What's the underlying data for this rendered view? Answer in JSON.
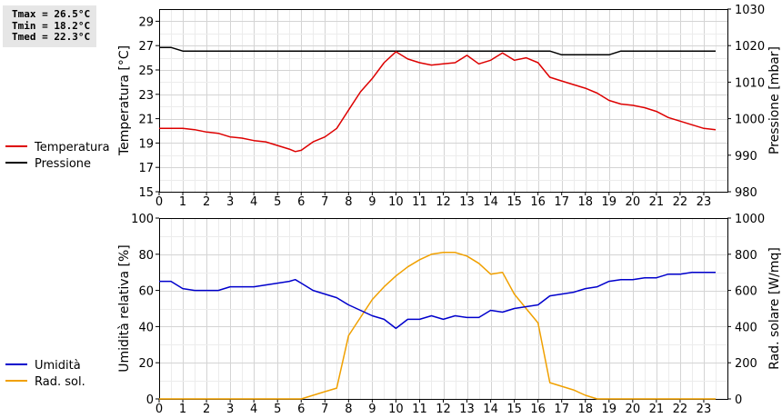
{
  "stats": [
    {
      "label": "Tmax",
      "value": "26.5°C"
    },
    {
      "label": "Tmin",
      "value": "18.2°C"
    },
    {
      "label": "Tmed",
      "value": "22.3°C"
    }
  ],
  "chart_data": [
    {
      "type": "line",
      "title": "",
      "xlabel": "",
      "ylabel": "Temperatura [°C]",
      "y2label": "Pressione [mbar]",
      "xlim": [
        0,
        24
      ],
      "ylim": [
        15,
        30
      ],
      "y2lim": [
        980,
        1030
      ],
      "x_ticks": [
        0,
        1,
        2,
        3,
        4,
        5,
        6,
        7,
        8,
        9,
        10,
        11,
        12,
        13,
        14,
        15,
        16,
        17,
        18,
        19,
        20,
        21,
        22,
        23
      ],
      "y_ticks": [
        15,
        17,
        19,
        21,
        23,
        25,
        27,
        29
      ],
      "y2_ticks": [
        980,
        990,
        1000,
        1010,
        1020,
        1030
      ],
      "grid": true,
      "legend": "left",
      "series": [
        {
          "name": "Temperatura",
          "axis": "left",
          "color": "#dd0000",
          "x": [
            0,
            0.5,
            1,
            1.5,
            2,
            2.5,
            3,
            3.5,
            4,
            4.5,
            5,
            5.5,
            5.75,
            6,
            6.5,
            7,
            7.5,
            8,
            8.5,
            9,
            9.5,
            10,
            10.5,
            11,
            11.5,
            12,
            12.5,
            13,
            13.5,
            14,
            14.5,
            15,
            15.5,
            16,
            16.5,
            17,
            17.5,
            18,
            18.5,
            19,
            19.5,
            20,
            20.5,
            21,
            21.5,
            22,
            22.5,
            23,
            23.5
          ],
          "values": [
            20.2,
            20.2,
            20.2,
            20.1,
            19.9,
            19.8,
            19.5,
            19.4,
            19.2,
            19.1,
            18.8,
            18.5,
            18.3,
            18.4,
            19.1,
            19.5,
            20.2,
            21.7,
            23.2,
            24.3,
            25.6,
            26.5,
            25.9,
            25.6,
            25.4,
            25.5,
            25.6,
            26.2,
            25.5,
            25.8,
            26.4,
            25.8,
            26.0,
            25.6,
            24.4,
            24.1,
            23.8,
            23.5,
            23.1,
            22.5,
            22.2,
            22.1,
            21.9,
            21.6,
            21.1,
            20.8,
            20.5,
            20.2,
            20.1
          ]
        },
        {
          "name": "Pressione",
          "axis": "right",
          "color": "#000000",
          "x": [
            0,
            0.5,
            1,
            1.5,
            16.5,
            17,
            17.5,
            18,
            18.5,
            19,
            19.5,
            20,
            23.5
          ],
          "values": [
            1019.5,
            1019.5,
            1018.5,
            1018.5,
            1018.5,
            1017.5,
            1017.5,
            1017.5,
            1017.5,
            1017.5,
            1018.5,
            1018.5,
            1018.5
          ]
        }
      ]
    },
    {
      "type": "line",
      "title": "",
      "xlabel": "",
      "ylabel": "Umidità relativa [%]",
      "y2label": "Rad. solare [W/mq]",
      "xlim": [
        0,
        24
      ],
      "ylim": [
        0,
        100
      ],
      "y2lim": [
        0,
        1000
      ],
      "x_ticks": [
        0,
        1,
        2,
        3,
        4,
        5,
        6,
        7,
        8,
        9,
        10,
        11,
        12,
        13,
        14,
        15,
        16,
        17,
        18,
        19,
        20,
        21,
        22,
        23
      ],
      "y_ticks": [
        0,
        20,
        40,
        60,
        80,
        100
      ],
      "y2_ticks": [
        0,
        200,
        400,
        600,
        800,
        1000
      ],
      "grid": true,
      "legend": "left",
      "series": [
        {
          "name": "Umidità",
          "axis": "left",
          "color": "#0000cc",
          "x": [
            0,
            0.5,
            1,
            1.5,
            2,
            2.5,
            3,
            3.5,
            4,
            4.5,
            5,
            5.5,
            5.75,
            6,
            6.5,
            7,
            7.5,
            8,
            8.5,
            9,
            9.5,
            10,
            10.5,
            11,
            11.5,
            12,
            12.5,
            13,
            13.5,
            14,
            14.5,
            15,
            15.5,
            16,
            16.5,
            17,
            17.5,
            18,
            18.5,
            19,
            19.5,
            20,
            20.5,
            21,
            21.5,
            22,
            22.5,
            23,
            23.5
          ],
          "values": [
            65,
            65,
            61,
            60,
            60,
            60,
            62,
            62,
            62,
            63,
            64,
            65,
            66,
            64,
            60,
            58,
            56,
            52,
            49,
            46,
            44,
            39,
            44,
            44,
            46,
            44,
            46,
            45,
            45,
            49,
            48,
            50,
            51,
            52,
            57,
            58,
            59,
            61,
            62,
            65,
            66,
            66,
            67,
            67,
            69,
            69,
            70,
            70,
            70
          ]
        },
        {
          "name": "Rad. sol.",
          "axis": "right",
          "color": "#f0a000",
          "x": [
            0,
            6,
            6.5,
            7,
            7.5,
            8,
            8.5,
            9,
            9.5,
            10,
            10.5,
            11,
            11.5,
            12,
            12.5,
            13,
            13.5,
            14,
            14.5,
            15,
            15.5,
            16,
            16.5,
            17,
            17.5,
            18,
            18.5,
            19,
            23.5
          ],
          "values": [
            0,
            0,
            20,
            40,
            60,
            350,
            450,
            550,
            620,
            680,
            730,
            770,
            800,
            810,
            810,
            790,
            750,
            690,
            700,
            580,
            500,
            420,
            90,
            70,
            50,
            20,
            0,
            0,
            0
          ]
        }
      ]
    }
  ]
}
